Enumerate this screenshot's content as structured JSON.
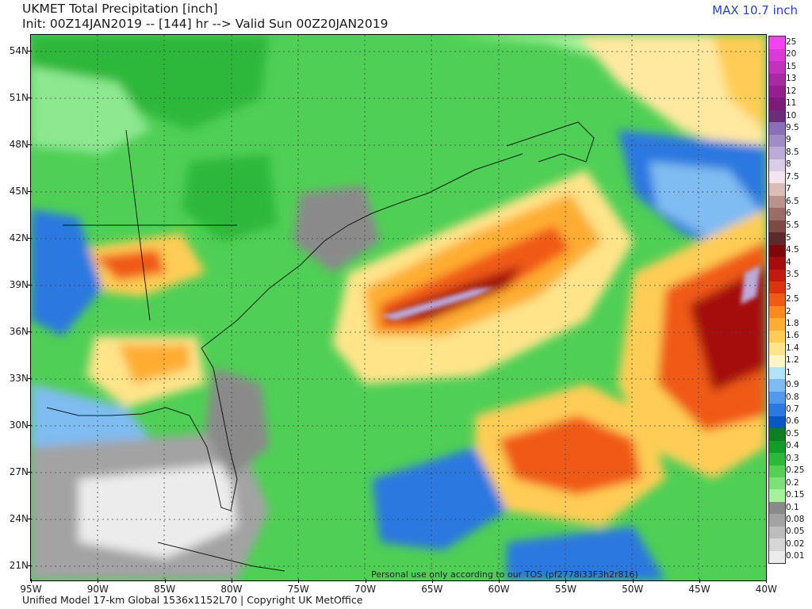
{
  "header": {
    "title": "UKMET Total Precipitation [inch]",
    "subtitle": "Init: 00Z14JAN2019 -- [144] hr --> Valid Sun 00Z20JAN2019",
    "max_label": "MAX 10.7 inch"
  },
  "map": {
    "lat_labels": [
      "54N",
      "51N",
      "48N",
      "45N",
      "42N",
      "39N",
      "36N",
      "33N",
      "30N",
      "27N",
      "24N",
      "21N"
    ],
    "lon_labels": [
      "95W",
      "90W",
      "85W",
      "80W",
      "75W",
      "70W",
      "65W",
      "60W",
      "55W",
      "50W",
      "45W",
      "40W"
    ],
    "tos_text": "Personal use only according to our TOS (pf2778i33F3h2r816)"
  },
  "footer": {
    "text": "Unified Model 17-km Global 1536x1152L70 | Copyright UK MetOffice"
  },
  "colorbar": {
    "labels": [
      "0.01",
      "0.02",
      "0.05",
      "0.08",
      "0.1",
      "0.15",
      "0.2",
      "0.25",
      "0.3",
      "0.4",
      "0.5",
      "0.6",
      "0.7",
      "0.8",
      "0.9",
      "1",
      "1.2",
      "1.4",
      "1.6",
      "1.8",
      "2",
      "2.5",
      "3",
      "3.5",
      "4",
      "4.5",
      "5",
      "5.5",
      "6",
      "6.5",
      "7",
      "7.5",
      "8",
      "8.5",
      "9",
      "9.5",
      "10",
      "11",
      "12",
      "13",
      "15",
      "20",
      "25"
    ],
    "colors": [
      "#ececec",
      "#d6d6d6",
      "#bdbdbd",
      "#a3a3a3",
      "#8a8a8a",
      "#a6f29a",
      "#7fe07a",
      "#55cf55",
      "#2db83a",
      "#139c2a",
      "#0f7f22",
      "#0a56c4",
      "#2b78e0",
      "#5199ea",
      "#7fbcf2",
      "#b3e3f7",
      "#fff6c4",
      "#ffe48a",
      "#ffcd55",
      "#ffad33",
      "#fb8a1e",
      "#f05a14",
      "#dc3210",
      "#c31a10",
      "#a50d0d",
      "#7f0808",
      "#5c2a2a",
      "#7d4a44",
      "#9c6c66",
      "#bc928c",
      "#dcbcb6",
      "#f4e4ee",
      "#d8cce8",
      "#bcaad8",
      "#a18bc8",
      "#8a6eb8",
      "#6b2c7c",
      "#7d1a7a",
      "#93208e",
      "#a82aa2",
      "#c232bc",
      "#dc3ad6",
      "#f542f0"
    ]
  }
}
